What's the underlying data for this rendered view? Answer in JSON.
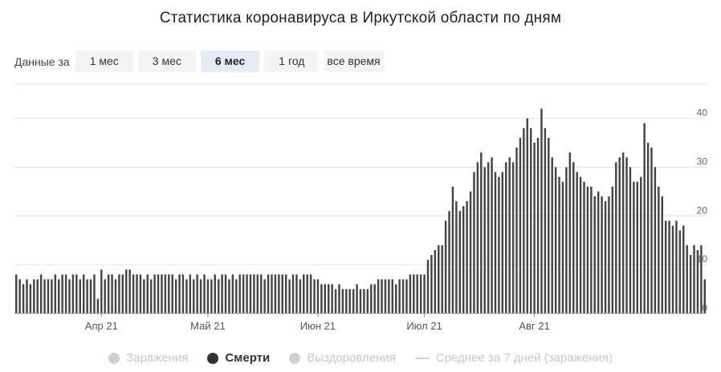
{
  "page": {
    "title": "Статистика коронавируса в Иркутской области по дням"
  },
  "range": {
    "label": "Данные за",
    "buttons": [
      {
        "label": "1 мес",
        "active": false
      },
      {
        "label": "3 мес",
        "active": false
      },
      {
        "label": "6 мес",
        "active": true
      },
      {
        "label": "1 год",
        "active": false
      },
      {
        "label": "все время",
        "active": false
      }
    ]
  },
  "legend": {
    "items": [
      {
        "label": "Заражения",
        "active": false
      },
      {
        "label": "Смерти",
        "active": true
      },
      {
        "label": "Выздоровления",
        "active": false
      },
      {
        "label": "Среднее за 7 дней (заражения)",
        "active": false
      }
    ]
  },
  "chart_data": {
    "type": "bar",
    "title": "",
    "xlabel": "",
    "ylabel": "",
    "bar_color": "#444444",
    "ylim": [
      0,
      47
    ],
    "yticks": [
      0,
      10,
      20,
      30,
      40
    ],
    "grid": true,
    "x_labels": [
      {
        "index": 24,
        "label": "Апр 21"
      },
      {
        "index": 54,
        "label": "Май 21"
      },
      {
        "index": 85,
        "label": "Июн 21"
      },
      {
        "index": 115,
        "label": "Июл 21"
      },
      {
        "index": 146,
        "label": "Авг 21"
      }
    ],
    "series": [
      {
        "values": [
          8,
          7,
          6,
          7,
          6,
          7,
          7,
          8,
          7,
          7,
          7,
          8,
          7,
          8,
          8,
          7,
          8,
          8,
          7,
          8,
          7,
          7,
          8,
          3,
          9,
          7,
          8,
          8,
          7,
          8,
          8,
          9,
          9,
          8,
          8,
          8,
          7,
          8,
          7,
          8,
          8,
          8,
          8,
          8,
          8,
          7,
          8,
          8,
          7,
          8,
          7,
          8,
          7,
          8,
          7,
          7,
          8,
          7,
          8,
          8,
          7,
          8,
          7,
          8,
          8,
          8,
          8,
          8,
          8,
          8,
          7,
          8,
          8,
          8,
          8,
          8,
          8,
          7,
          8,
          8,
          7,
          8,
          8,
          8,
          7,
          7,
          6,
          6,
          6,
          6,
          5,
          6,
          5,
          5,
          5,
          5,
          6,
          5,
          5,
          5,
          6,
          6,
          7,
          7,
          7,
          7,
          7,
          6,
          7,
          7,
          7,
          8,
          8,
          8,
          8,
          8,
          11,
          12,
          13,
          14,
          14,
          19,
          21,
          26,
          23,
          21,
          22,
          23,
          25,
          29,
          31,
          33,
          30,
          31,
          32,
          29,
          28,
          29,
          31,
          32,
          31,
          34,
          36,
          38,
          40,
          38,
          35,
          36,
          42,
          38,
          36,
          32,
          30,
          28,
          27,
          30,
          33,
          31,
          29,
          28,
          27,
          26,
          26,
          24,
          25,
          24,
          23,
          24,
          26,
          31,
          32,
          33,
          32,
          30,
          27,
          27,
          28,
          39,
          35,
          34,
          30,
          26,
          24,
          19,
          19,
          18,
          19,
          17,
          18,
          14,
          12,
          14,
          13,
          14,
          7
        ]
      }
    ]
  }
}
